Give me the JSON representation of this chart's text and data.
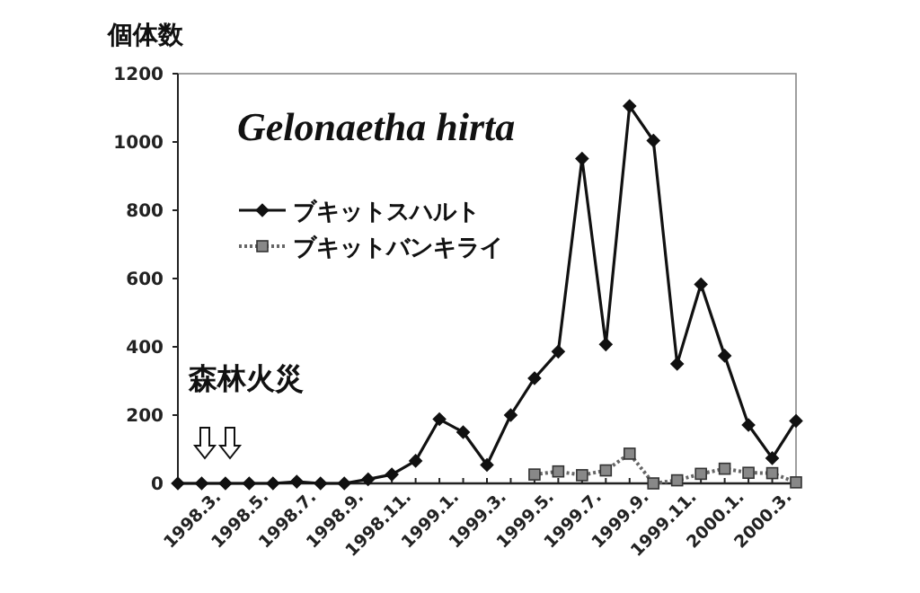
{
  "chart_data": {
    "type": "line",
    "title": "Gelonaetha hirta",
    "ylabel": "個体数",
    "categories": [
      null,
      null,
      "1998.3.",
      null,
      "1998.5.",
      null,
      "1998.7.",
      null,
      "1998.9.",
      null,
      "1998.11.",
      null,
      "1999.1.",
      null,
      "1999.3.",
      null,
      "1999.5.",
      null,
      "1999.7.",
      null,
      "1999.9.",
      null,
      "1999.11.",
      null,
      "2000.1.",
      null,
      "2000.3."
    ],
    "series": [
      {
        "name": "ブキットスハルト",
        "color": "#111111",
        "marker": "diamond",
        "line_style": "solid",
        "values": [
          0,
          0,
          0,
          0,
          0,
          5,
          0,
          0,
          12,
          26,
          66,
          188,
          150,
          54,
          200,
          308,
          386,
          951,
          407,
          1105,
          1004,
          350,
          583,
          374,
          171,
          74,
          183
        ]
      },
      {
        "name": "ブキットバンキライ",
        "color": "#666666",
        "marker": "square",
        "line_style": "dotted",
        "values": [
          null,
          null,
          null,
          null,
          null,
          null,
          null,
          null,
          null,
          null,
          null,
          null,
          null,
          null,
          null,
          26,
          35,
          24,
          38,
          87,
          0,
          9,
          28,
          43,
          31,
          30,
          3
        ]
      }
    ],
    "ylim": [
      0,
      1200
    ],
    "yticks": [
      0,
      200,
      400,
      600,
      800,
      1000,
      1200
    ],
    "grid": false,
    "legend": "top left",
    "annotations": [
      "森林火災"
    ]
  }
}
